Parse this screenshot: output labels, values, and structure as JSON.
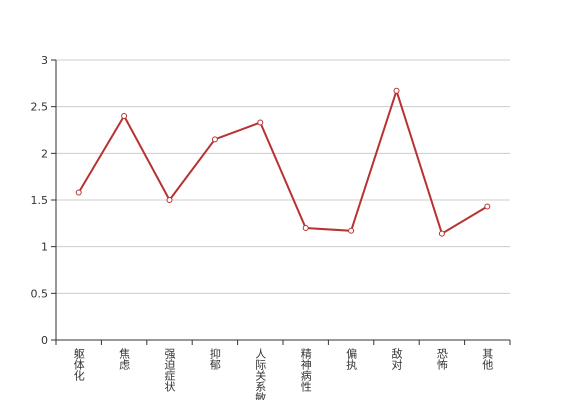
{
  "chart_data": {
    "type": "line",
    "categories": [
      "躯体化",
      "焦虑",
      "强迫症状",
      "抑郁",
      "人际关系敏感",
      "精神病性",
      "偏执",
      "敌对",
      "恐怖",
      "其他"
    ],
    "series": [
      {
        "color": "#b83232",
        "values": [
          1.58,
          2.4,
          1.5,
          2.15,
          2.33,
          1.2,
          1.17,
          2.67,
          1.14,
          1.43
        ]
      }
    ],
    "ylim": [
      0,
      3
    ],
    "yticks": [
      0,
      0.5,
      1,
      1.5,
      2,
      2.5,
      3
    ],
    "grid": true
  }
}
